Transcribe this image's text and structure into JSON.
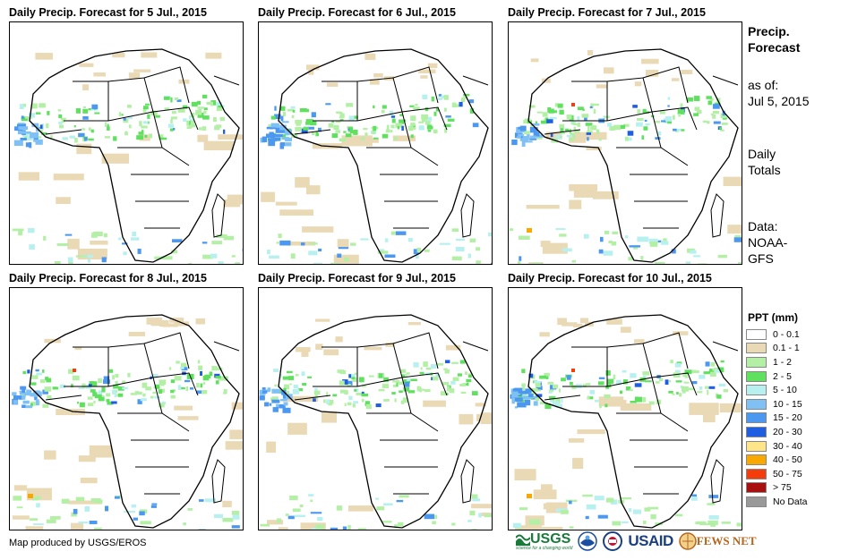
{
  "panels": [
    {
      "title": "Daily Precip. Forecast for 5 Jul., 2015"
    },
    {
      "title": "Daily Precip. Forecast for 6 Jul., 2015"
    },
    {
      "title": "Daily Precip. Forecast for 7 Jul., 2015"
    },
    {
      "title": "Daily Precip. Forecast for 8 Jul., 2015"
    },
    {
      "title": "Daily Precip. Forecast for 9 Jul., 2015"
    },
    {
      "title": "Daily Precip. Forecast for 10 Jul., 2015"
    }
  ],
  "side": {
    "heading1": "Precip.",
    "heading2": "Forecast",
    "asof1": "as of:",
    "asof2": "Jul 5, 2015",
    "daily1": "Daily",
    "daily2": "Totals",
    "data1": "Data:",
    "data2": "NOAA-",
    "data3": "GFS"
  },
  "legend": {
    "title": "PPT (mm)",
    "items": [
      {
        "label": "0 - 0.1",
        "color": "#ffffff"
      },
      {
        "label": "0.1 - 1",
        "color": "#ead9b5"
      },
      {
        "label": "1 - 2",
        "color": "#b3f0a6"
      },
      {
        "label": "2 - 5",
        "color": "#5fe05f"
      },
      {
        "label": "5 - 10",
        "color": "#b8f0f0"
      },
      {
        "label": "10 - 15",
        "color": "#7fc0f5"
      },
      {
        "label": "15 - 20",
        "color": "#4c98f0"
      },
      {
        "label": "20 - 30",
        "color": "#1f5ee0"
      },
      {
        "label": "30 - 40",
        "color": "#fde58a"
      },
      {
        "label": "40 - 50",
        "color": "#f9a800"
      },
      {
        "label": "50 - 75",
        "color": "#f53d0c"
      },
      {
        "label": "> 75",
        "color": "#a81010"
      },
      {
        "label": "No Data",
        "color": "#999999"
      }
    ]
  },
  "credit": "Map produced by USGS/EROS",
  "logos": {
    "usgs": "USGS",
    "usgs_tag": "science for a changing world",
    "usaid": "USAID",
    "famine": "FEWS NET"
  }
}
